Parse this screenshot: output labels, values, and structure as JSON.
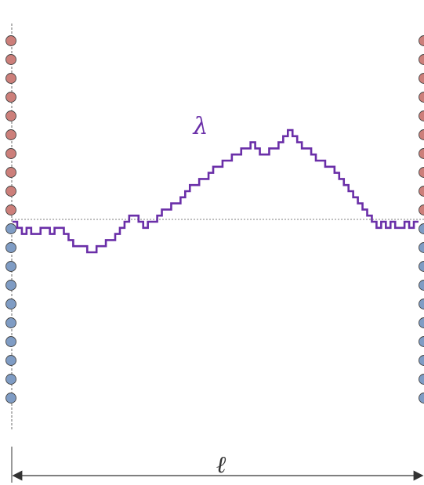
{
  "labels": {
    "interface": "λ",
    "width": "ℓ"
  },
  "colors": {
    "upper_spin": "#cc7f7a",
    "lower_spin": "#7f9cc4",
    "interface_path": "#6a2fa8",
    "guide_line": "#555555",
    "axis_arrow": "#333333"
  },
  "spin_columns": {
    "upper_count": 10,
    "lower_count": 10
  },
  "interface_heights": [
    0,
    -1,
    -2,
    -1,
    -2,
    -2,
    -1,
    -1,
    -2,
    -1,
    -1,
    -2,
    -3,
    -4,
    -4,
    -4,
    -5,
    -5,
    -4,
    -4,
    -3,
    -3,
    -2,
    -1,
    0,
    1,
    1,
    0,
    -1,
    0,
    0,
    1,
    2,
    2,
    3,
    3,
    4,
    5,
    6,
    6,
    7,
    7,
    8,
    9,
    9,
    10,
    10,
    11,
    11,
    12,
    12,
    13,
    12,
    11,
    11,
    12,
    12,
    13,
    14,
    15,
    14,
    13,
    12,
    12,
    11,
    10,
    10,
    9,
    9,
    8,
    7,
    6,
    5,
    4,
    3,
    2,
    1,
    0,
    -1,
    0,
    -1,
    0,
    -1,
    -1,
    0,
    -1,
    0,
    0
  ]
}
